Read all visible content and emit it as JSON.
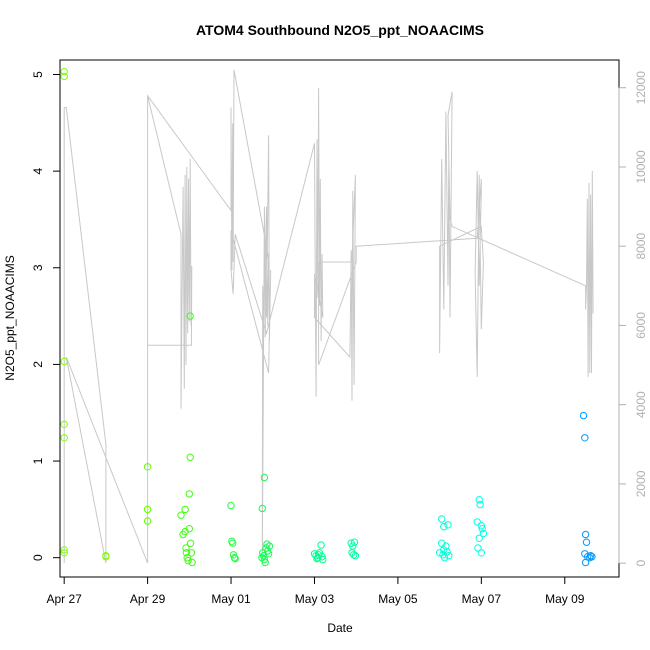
{
  "chart_data": {
    "type": "scatter",
    "title": "ATOM4 Southbound N2O5_ppt_NOAACIMS",
    "xlabel": "Date",
    "ylabel": "N2O5_ppt_NOAACIMS",
    "x_unit": "day of 2018 (Apr 27 = 117)",
    "xlim": [
      116.9,
      130.3
    ],
    "ylim": [
      -0.2,
      5.15
    ],
    "y2lim": [
      -350,
      12700
    ],
    "x_ticks": [
      {
        "value": 117,
        "label": "Apr 27"
      },
      {
        "value": 119,
        "label": "Apr 29"
      },
      {
        "value": 121,
        "label": "May 01"
      },
      {
        "value": 123,
        "label": "May 03"
      },
      {
        "value": 125,
        "label": "May 05"
      },
      {
        "value": 127,
        "label": "May 07"
      },
      {
        "value": 129,
        "label": "May 09"
      }
    ],
    "y_ticks": [
      0,
      1,
      2,
      3,
      4,
      5
    ],
    "y2_ticks": [
      0,
      2000,
      4000,
      6000,
      8000,
      10000,
      12000
    ],
    "grid": false,
    "colors": {
      "axis": "#000000",
      "altitude_line": "#c8c8c8",
      "right_axis": "#b0b0b0"
    },
    "points": [
      [
        117.0,
        5.03,
        "#80ff00"
      ],
      [
        117.0,
        4.98,
        "#80ff00"
      ],
      [
        117.0,
        2.03,
        "#80ff00"
      ],
      [
        117.0,
        1.38,
        "#80ff00"
      ],
      [
        117.0,
        1.24,
        "#80ff00"
      ],
      [
        117.0,
        0.08,
        "#80ff00"
      ],
      [
        117.0,
        0.05,
        "#80ff00"
      ],
      [
        118.0,
        0.02,
        "#80ff00"
      ],
      [
        118.0,
        0.01,
        "#80ff00"
      ],
      [
        119.0,
        0.94,
        "#60ff00"
      ],
      [
        119.0,
        0.5,
        "#60ff00"
      ],
      [
        119.0,
        0.38,
        "#60ff00"
      ],
      [
        119.8,
        0.44,
        "#40ff10"
      ],
      [
        119.85,
        0.24,
        "#40ff10"
      ],
      [
        119.9,
        0.5,
        "#40ff10"
      ],
      [
        119.9,
        0.27,
        "#40ff10"
      ],
      [
        119.92,
        0.1,
        "#40ff10"
      ],
      [
        119.93,
        0.05,
        "#40ff10"
      ],
      [
        119.95,
        0.0,
        "#40ff10"
      ],
      [
        119.97,
        -0.03,
        "#40ff10"
      ],
      [
        120.0,
        0.66,
        "#40ff10"
      ],
      [
        120.0,
        0.3,
        "#40ff10"
      ],
      [
        120.02,
        1.04,
        "#40ff10"
      ],
      [
        120.02,
        2.5,
        "#40ff10"
      ],
      [
        120.03,
        0.15,
        "#40ff10"
      ],
      [
        120.05,
        0.05,
        "#40ff10"
      ],
      [
        120.07,
        -0.05,
        "#40ff10"
      ],
      [
        121.0,
        0.54,
        "#20ff40"
      ],
      [
        121.02,
        0.17,
        "#20ff40"
      ],
      [
        121.04,
        0.15,
        "#20ff40"
      ],
      [
        121.06,
        0.03,
        "#20ff40"
      ],
      [
        121.08,
        0.0,
        "#20ff40"
      ],
      [
        121.1,
        -0.01,
        "#20ff40"
      ],
      [
        121.75,
        0.51,
        "#10ff50"
      ],
      [
        121.8,
        0.83,
        "#10ff50"
      ],
      [
        121.76,
        0.05,
        "#10ff50"
      ],
      [
        121.78,
        0.02,
        "#10ff50"
      ],
      [
        121.8,
        -0.02,
        "#10ff50"
      ],
      [
        121.82,
        -0.05,
        "#10ff50"
      ],
      [
        121.84,
        0.1,
        "#10ff50"
      ],
      [
        121.86,
        0.14,
        "#10ff50"
      ],
      [
        121.88,
        0.07,
        "#10ff50"
      ],
      [
        121.9,
        0.04,
        "#10ff50"
      ],
      [
        121.92,
        0.12,
        "#10ff50"
      ],
      [
        121.74,
        0.0,
        "#10ff50"
      ],
      [
        123.0,
        0.04,
        "#00ff90"
      ],
      [
        123.04,
        0.02,
        "#00ff90"
      ],
      [
        123.08,
        0.0,
        "#00ff90"
      ],
      [
        123.12,
        0.05,
        "#00ff90"
      ],
      [
        123.16,
        0.13,
        "#00ff90"
      ],
      [
        123.18,
        0.01,
        "#00ff90"
      ],
      [
        123.06,
        -0.01,
        "#00ff90"
      ],
      [
        123.1,
        0.03,
        "#00ff90"
      ],
      [
        123.2,
        -0.02,
        "#00ff90"
      ],
      [
        123.88,
        0.15,
        "#00ffa0"
      ],
      [
        123.92,
        0.12,
        "#00ffa0"
      ],
      [
        123.96,
        0.16,
        "#00ffa0"
      ],
      [
        123.9,
        0.05,
        "#00ffa0"
      ],
      [
        123.94,
        0.03,
        "#00ffa0"
      ],
      [
        123.98,
        0.02,
        "#00ffa0"
      ],
      [
        126.05,
        0.4,
        "#00ffd8"
      ],
      [
        126.1,
        0.32,
        "#00ffd8"
      ],
      [
        126.2,
        0.34,
        "#00ffd8"
      ],
      [
        126.05,
        0.15,
        "#00ffd8"
      ],
      [
        126.1,
        0.08,
        "#00ffd8"
      ],
      [
        126.15,
        0.12,
        "#00ffd8"
      ],
      [
        126.0,
        0.05,
        "#00ffd8"
      ],
      [
        126.08,
        0.03,
        "#00ffd8"
      ],
      [
        126.12,
        0.0,
        "#00ffd8"
      ],
      [
        126.18,
        0.06,
        "#00ffd8"
      ],
      [
        126.22,
        0.02,
        "#00ffd8"
      ],
      [
        126.95,
        0.6,
        "#00ffe8"
      ],
      [
        126.97,
        0.55,
        "#00ffe8"
      ],
      [
        126.9,
        0.37,
        "#00ffe8"
      ],
      [
        127.0,
        0.33,
        "#00ffe8"
      ],
      [
        127.05,
        0.25,
        "#00ffe8"
      ],
      [
        127.02,
        0.3,
        "#00ffe8"
      ],
      [
        126.92,
        0.1,
        "#00ffe8"
      ],
      [
        127.0,
        0.05,
        "#00ffe8"
      ],
      [
        126.95,
        0.2,
        "#00ffe8"
      ],
      [
        129.45,
        1.47,
        "#0098ff"
      ],
      [
        129.48,
        1.24,
        "#0098ff"
      ],
      [
        129.5,
        0.24,
        "#0098ff"
      ],
      [
        129.52,
        0.16,
        "#0098ff"
      ],
      [
        129.48,
        0.04,
        "#0098ff"
      ],
      [
        129.55,
        0.01,
        "#0098ff"
      ],
      [
        129.6,
        0.0,
        "#0098ff"
      ],
      [
        129.62,
        0.02,
        "#0098ff"
      ],
      [
        129.65,
        0.01,
        "#0098ff"
      ],
      [
        129.5,
        -0.05,
        "#0098ff"
      ]
    ],
    "altitude_line": {
      "x": [
        117.0,
        117.0,
        117.0,
        117.05,
        118.0,
        118.0,
        117.05,
        119.0,
        119.0,
        119.8,
        119.8,
        119.85,
        119.88,
        119.9,
        119.92,
        119.94,
        119.96,
        119.98,
        120.0,
        120.02,
        120.04,
        120.06,
        120.05,
        119.9,
        119.0,
        119.0,
        121.0,
        121.0,
        121.02,
        121.04,
        121.05,
        121.07,
        121.9,
        121.88,
        121.85,
        121.82,
        121.8,
        121.78,
        121.76,
        121.75,
        121.8,
        121.85,
        121.9,
        121.92,
        121.95,
        121.9,
        121.0,
        121.0,
        121.05,
        121.1,
        121.85,
        123.0,
        123.02,
        123.04,
        123.06,
        123.08,
        123.1,
        123.12,
        123.14,
        123.16,
        123.18,
        123.2,
        123.0,
        123.0,
        123.85,
        123.88,
        123.9,
        123.92,
        123.95,
        123.98,
        123.9,
        123.1,
        123.1,
        124.0,
        124.0,
        126.9,
        127.0,
        127.0,
        126.95,
        126.9,
        126.85,
        126.9,
        126.95,
        127.0,
        127.05,
        127.0,
        126.0,
        126.0,
        126.05,
        126.1,
        126.15,
        126.2,
        126.22,
        126.25,
        126.3,
        126.2,
        126.25,
        126.3,
        129.5,
        129.5,
        129.52,
        129.54,
        129.56,
        129.58,
        129.6,
        129.62,
        129.64,
        129.66,
        129.68
      ],
      "y": [
        0,
        5200,
        11500,
        11500,
        3000,
        0,
        5200,
        0,
        11800,
        8300,
        3900,
        9500,
        4400,
        9800,
        5000,
        10000,
        5800,
        9700,
        6100,
        10200,
        6000,
        7500,
        5500,
        5500,
        5500,
        11800,
        8900,
        11500,
        7400,
        11100,
        7600,
        12450,
        7700,
        6000,
        9000,
        5700,
        8900,
        5600,
        7000,
        0,
        9000,
        6200,
        10800,
        5600,
        7400,
        4800,
        8400,
        7400,
        6800,
        8300,
        5800,
        10600,
        7000,
        4200,
        10700,
        6700,
        12000,
        6500,
        9700,
        5600,
        7800,
        6200,
        7300,
        6200,
        5200,
        7900,
        4100,
        9400,
        4500,
        9800,
        7600,
        7600,
        5000,
        7600,
        8000,
        8200,
        9700,
        9400,
        7000,
        9900,
        7300,
        4700,
        9800,
        5900,
        7600,
        8500,
        8000,
        5300,
        10200,
        6400,
        11400,
        7000,
        10200,
        6200,
        11900,
        11300,
        8700,
        8500,
        7000,
        6400,
        7000,
        9200,
        4700,
        9600,
        4800,
        9300,
        4800,
        9900,
        6300
      ]
    }
  }
}
